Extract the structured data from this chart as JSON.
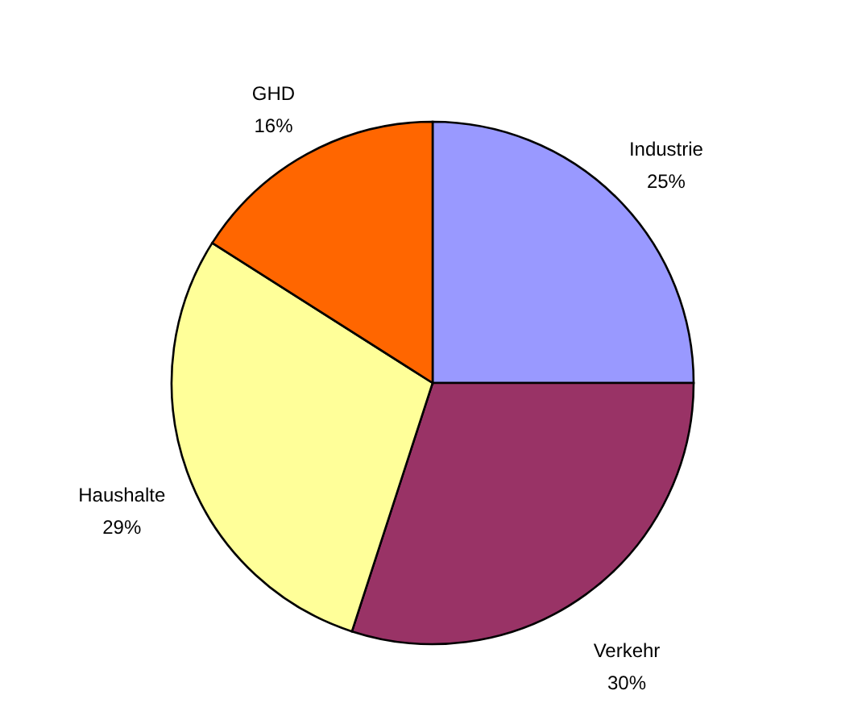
{
  "chart_data": {
    "type": "pie",
    "categories": [
      "Industrie",
      "Verkehr",
      "Haushalte",
      "GHD"
    ],
    "values": [
      25,
      30,
      29,
      16
    ],
    "value_labels": [
      "25%",
      "30%",
      "29%",
      "16%"
    ],
    "colors": [
      "#9999ff",
      "#993366",
      "#ffff99",
      "#ff6600"
    ],
    "legend": false
  }
}
